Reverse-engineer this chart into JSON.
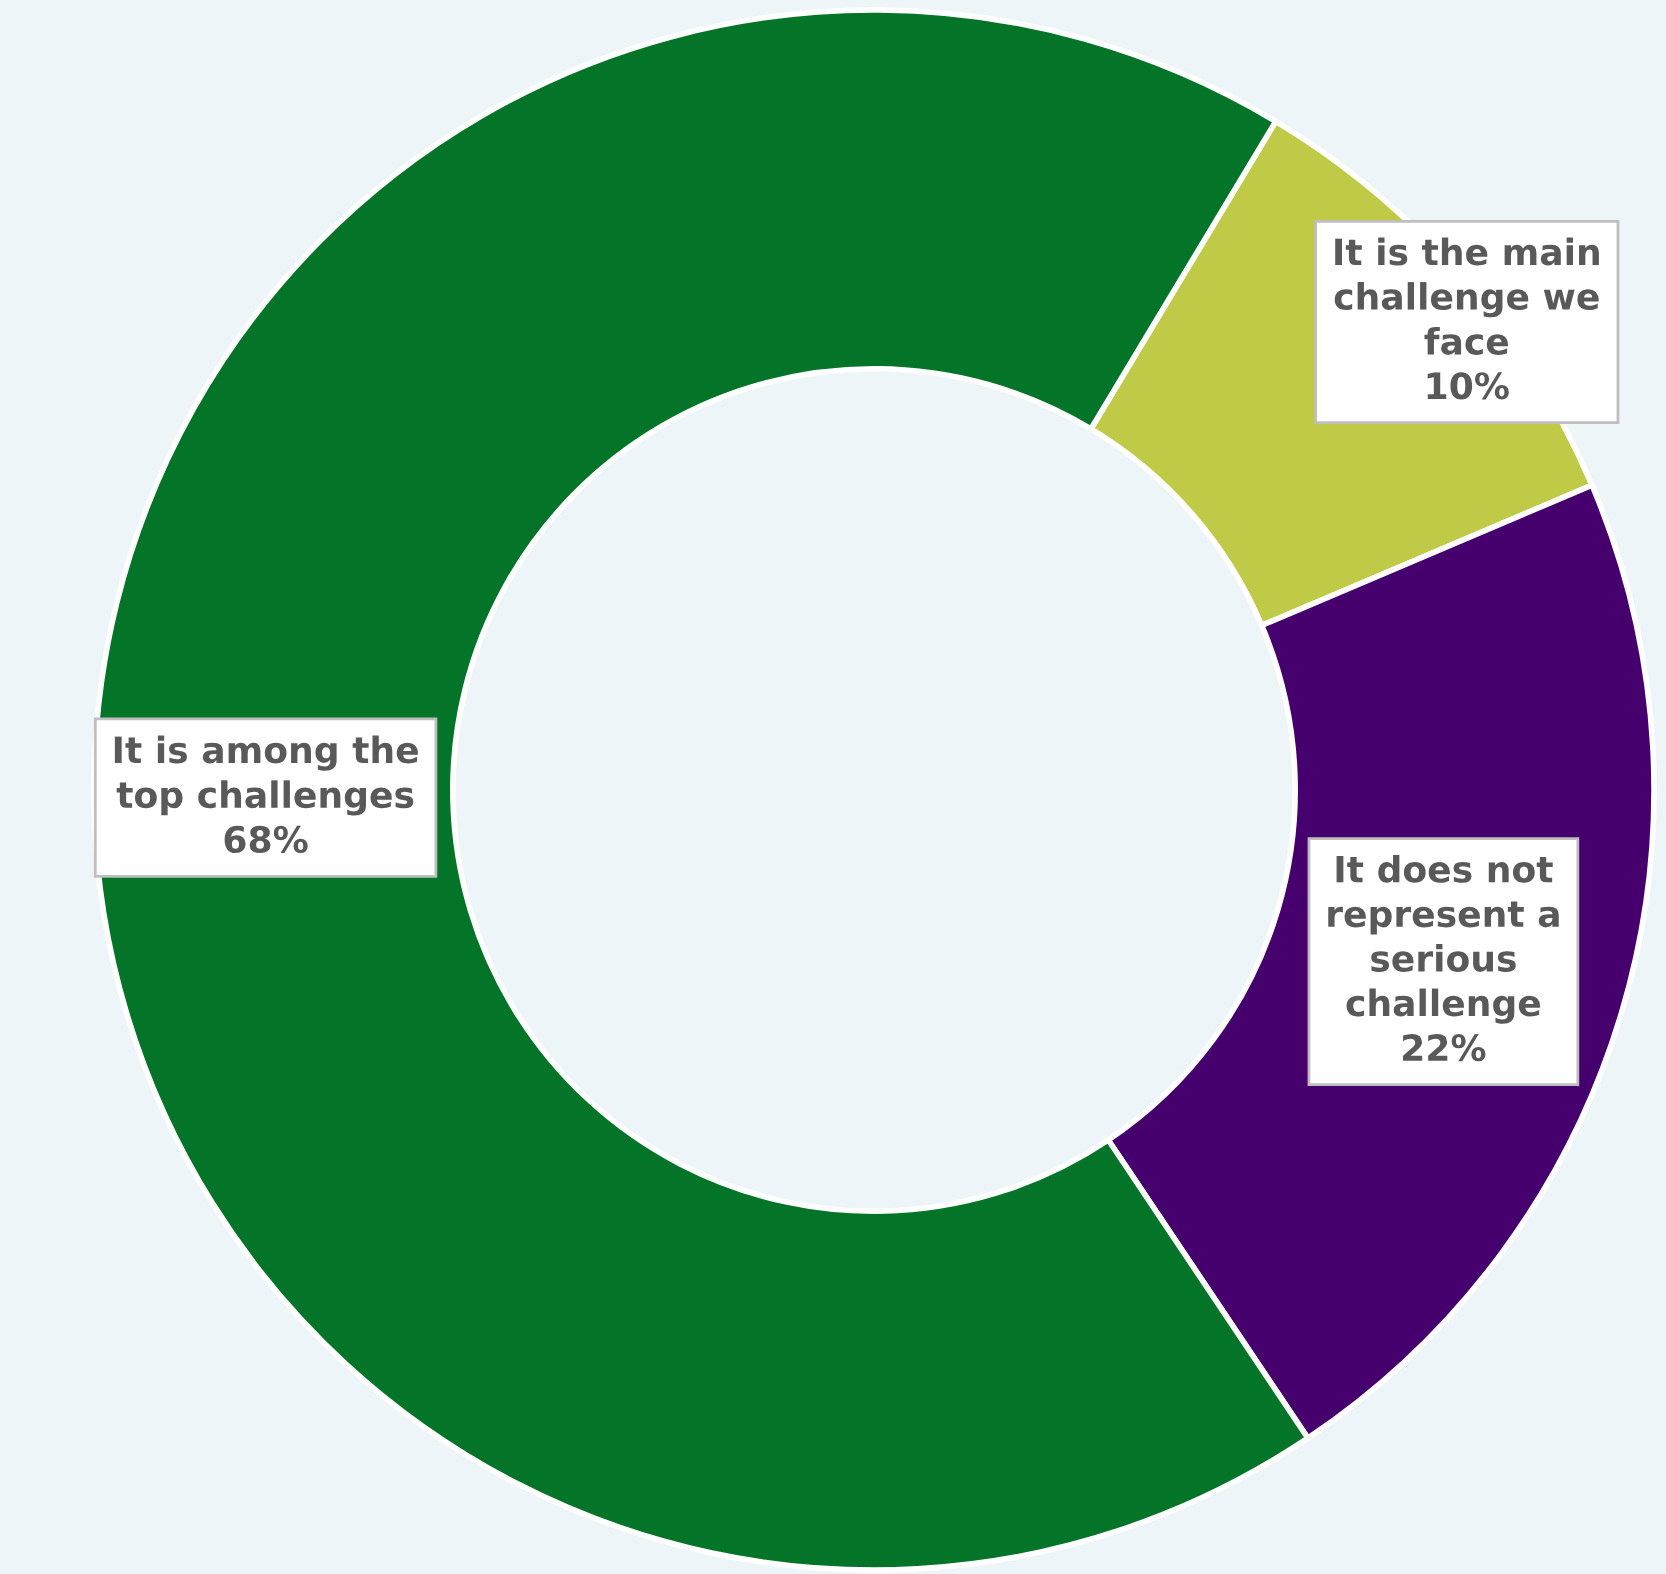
{
  "chart_data": {
    "type": "donut",
    "categories": [
      "It is the main challenge we face",
      "It does not represent a serious challenge",
      "It is among the top challenges"
    ],
    "values": [
      10,
      22,
      68
    ],
    "colors": [
      "#bfca46",
      "#45006e",
      "#037428"
    ],
    "value_labels": [
      "10%",
      "22%",
      "68%"
    ],
    "legend": false
  }
}
